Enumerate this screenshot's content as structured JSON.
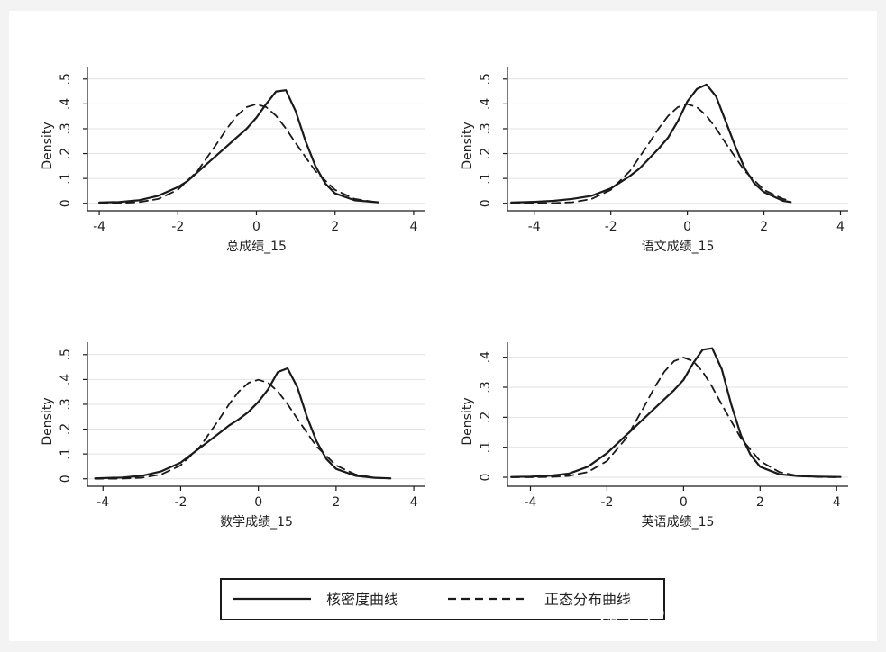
{
  "colors": {
    "outer_background": "#f3f3f3",
    "figure_background": "#ffffff",
    "plot_background": "#ffffff",
    "grid": "#e2e2e2",
    "line": "#1a1a1a"
  },
  "legend": {
    "position": "bottom-center",
    "items": [
      {
        "label": "核密度曲线",
        "style": "solid"
      },
      {
        "label": "正态分布曲线",
        "style": "dashed"
      }
    ]
  },
  "watermark": {
    "text": "知乎 @学业规划杨教授"
  },
  "chart_data": [
    {
      "type": "line",
      "xlabel": "总成绩_15",
      "ylabel": "Density",
      "xlim": [
        -4.3,
        4.3
      ],
      "ylim": [
        -0.03,
        0.55
      ],
      "xticks": [
        "-4",
        "-2",
        "0",
        "2",
        "4"
      ],
      "yticks": [
        "0",
        ".1",
        ".2",
        ".3",
        ".4",
        ".5"
      ],
      "grid": true,
      "series": [
        {
          "style": "solid",
          "x": [
            -4,
            -3.5,
            -3,
            -2.5,
            -2,
            -1.75,
            -1.5,
            -1.25,
            -1,
            -0.75,
            -0.5,
            -0.25,
            0,
            0.25,
            0.5,
            0.75,
            1,
            1.25,
            1.5,
            1.75,
            2,
            2.5,
            3.1
          ],
          "y": [
            0.003,
            0.005,
            0.012,
            0.03,
            0.065,
            0.09,
            0.125,
            0.16,
            0.195,
            0.23,
            0.265,
            0.3,
            0.345,
            0.4,
            0.45,
            0.455,
            0.37,
            0.25,
            0.15,
            0.08,
            0.04,
            0.012,
            0.004
          ]
        },
        {
          "style": "dashed",
          "x": [
            -4,
            -3.5,
            -3,
            -2.5,
            -2,
            -1.5,
            -1,
            -0.75,
            -0.5,
            -0.25,
            0,
            0.25,
            0.5,
            0.75,
            1,
            1.5,
            2,
            2.5,
            3.1
          ],
          "y": [
            0.0001,
            0.0009,
            0.0044,
            0.0175,
            0.054,
            0.13,
            0.242,
            0.301,
            0.352,
            0.387,
            0.399,
            0.387,
            0.352,
            0.301,
            0.242,
            0.13,
            0.054,
            0.0175,
            0.0033
          ]
        }
      ]
    },
    {
      "type": "line",
      "xlabel": "语文成绩_15",
      "ylabel": "Density",
      "xlim": [
        -4.7,
        4.2
      ],
      "ylim": [
        -0.03,
        0.55
      ],
      "xticks": [
        "-4",
        "-2",
        "0",
        "2",
        "4"
      ],
      "yticks": [
        "0",
        ".1",
        ".2",
        ".3",
        ".4",
        ".5"
      ],
      "grid": true,
      "series": [
        {
          "style": "solid",
          "x": [
            -4.6,
            -4,
            -3.5,
            -3,
            -2.5,
            -2,
            -1.5,
            -1.25,
            -1,
            -0.75,
            -0.5,
            -0.25,
            0,
            0.25,
            0.5,
            0.75,
            1,
            1.25,
            1.5,
            1.75,
            2,
            2.5,
            2.7
          ],
          "y": [
            0.003,
            0.006,
            0.01,
            0.018,
            0.03,
            0.06,
            0.11,
            0.14,
            0.18,
            0.22,
            0.265,
            0.33,
            0.41,
            0.46,
            0.478,
            0.43,
            0.33,
            0.23,
            0.14,
            0.08,
            0.045,
            0.01,
            0.005
          ]
        },
        {
          "style": "dashed",
          "x": [
            -4.6,
            -4,
            -3.5,
            -3,
            -2.5,
            -2,
            -1.5,
            -1,
            -0.75,
            -0.5,
            -0.25,
            0,
            0.25,
            0.5,
            0.75,
            1,
            1.5,
            2,
            2.5,
            2.7
          ],
          "y": [
            0.0001,
            0.0001,
            0.0009,
            0.0044,
            0.0175,
            0.054,
            0.13,
            0.242,
            0.301,
            0.352,
            0.387,
            0.399,
            0.387,
            0.352,
            0.301,
            0.242,
            0.13,
            0.054,
            0.0175,
            0.0104
          ]
        }
      ]
    },
    {
      "type": "line",
      "xlabel": "数学成绩_15",
      "ylabel": "Density",
      "xlim": [
        -4.4,
        4.3
      ],
      "ylim": [
        -0.03,
        0.55
      ],
      "xticks": [
        "-4",
        "-2",
        "0",
        "2",
        "4"
      ],
      "yticks": [
        "0",
        ".1",
        ".2",
        ".3",
        ".4",
        ".5"
      ],
      "grid": true,
      "series": [
        {
          "style": "solid",
          "x": [
            -4.2,
            -3.5,
            -3,
            -2.5,
            -2,
            -1.5,
            -1.25,
            -1,
            -0.75,
            -0.5,
            -0.25,
            0,
            0.25,
            0.5,
            0.75,
            1,
            1.25,
            1.5,
            1.75,
            2,
            2.5,
            3,
            3.4
          ],
          "y": [
            0.002,
            0.005,
            0.012,
            0.03,
            0.065,
            0.125,
            0.155,
            0.185,
            0.215,
            0.24,
            0.27,
            0.31,
            0.36,
            0.43,
            0.445,
            0.37,
            0.25,
            0.15,
            0.08,
            0.04,
            0.012,
            0.004,
            0.002
          ]
        },
        {
          "style": "dashed",
          "x": [
            -4.2,
            -3.5,
            -3,
            -2.5,
            -2,
            -1.5,
            -1,
            -0.75,
            -0.5,
            -0.25,
            0,
            0.25,
            0.5,
            0.75,
            1,
            1.5,
            2,
            2.5,
            3,
            3.4
          ],
          "y": [
            0.0001,
            0.0009,
            0.0044,
            0.0175,
            0.054,
            0.13,
            0.242,
            0.301,
            0.352,
            0.387,
            0.399,
            0.387,
            0.352,
            0.301,
            0.242,
            0.13,
            0.054,
            0.0175,
            0.0044,
            0.0012
          ]
        }
      ]
    },
    {
      "type": "line",
      "xlabel": "英语成绩_15",
      "ylabel": "Density",
      "xlim": [
        -4.6,
        4.3
      ],
      "ylim": [
        -0.03,
        0.45
      ],
      "xticks": [
        "-4",
        "-2",
        "0",
        "2",
        "4"
      ],
      "yticks": [
        "0",
        ".1",
        ".2",
        ".3",
        ".4"
      ],
      "grid": true,
      "series": [
        {
          "style": "solid",
          "x": [
            -4.5,
            -4,
            -3.5,
            -3,
            -2.5,
            -2,
            -1.5,
            -1,
            -0.5,
            -0.25,
            0,
            0.25,
            0.5,
            0.75,
            1,
            1.25,
            1.5,
            1.75,
            2,
            2.5,
            3,
            3.5,
            4.1
          ],
          "y": [
            0.001,
            0.002,
            0.005,
            0.012,
            0.035,
            0.08,
            0.14,
            0.2,
            0.26,
            0.29,
            0.325,
            0.38,
            0.425,
            0.43,
            0.36,
            0.24,
            0.14,
            0.075,
            0.035,
            0.01,
            0.004,
            0.002,
            0.001
          ]
        },
        {
          "style": "dashed",
          "x": [
            -4.5,
            -4,
            -3.5,
            -3,
            -2.5,
            -2,
            -1.5,
            -1,
            -0.75,
            -0.5,
            -0.25,
            0,
            0.25,
            0.5,
            0.75,
            1,
            1.5,
            2,
            2.5,
            3,
            3.5,
            4.1
          ],
          "y": [
            0.0001,
            0.0001,
            0.0009,
            0.0044,
            0.0175,
            0.054,
            0.13,
            0.242,
            0.301,
            0.352,
            0.387,
            0.399,
            0.387,
            0.352,
            0.301,
            0.242,
            0.13,
            0.054,
            0.0175,
            0.0044,
            0.0009,
            0.0001
          ]
        }
      ]
    }
  ]
}
